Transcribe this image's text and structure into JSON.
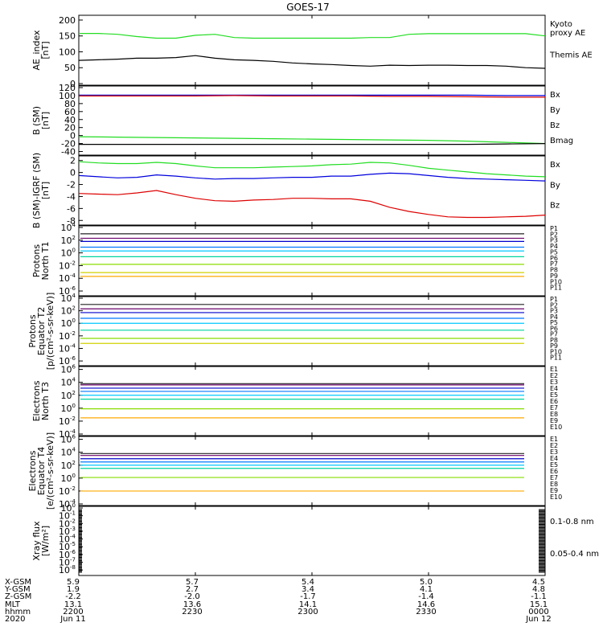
{
  "title": "GOES-17",
  "colors": {
    "green": "#22dd22",
    "black": "#000000",
    "blue": "#0000dd",
    "red": "#dd0000",
    "p1": "#222222",
    "p2": "#6a006a",
    "p3": "#0000cc",
    "p4": "#0077ff",
    "p5": "#00c8ff",
    "p6": "#00d4a0",
    "p7": "#88dd00",
    "p8": "#d0d000",
    "p9": "#ffaa00",
    "p10": "#dd5500",
    "p11": "#cc0000"
  },
  "chart_data": [
    {
      "type": "line",
      "panel": "ae",
      "ylabel": "AE_index\n[nT]",
      "yticks": [
        "200",
        "150",
        "100",
        "50",
        "0"
      ],
      "ylim": [
        0,
        210
      ],
      "x": [
        0,
        5,
        10,
        15,
        20,
        25,
        30,
        35,
        40,
        45,
        50,
        55,
        60,
        65,
        70,
        75,
        80,
        85,
        90,
        95,
        100,
        105,
        110,
        115,
        120
      ],
      "series": [
        {
          "name": "Kyoto\nproxy AE",
          "color": "green",
          "values": [
            158,
            158,
            155,
            148,
            143,
            143,
            152,
            155,
            145,
            143,
            143,
            143,
            143,
            143,
            143,
            145,
            145,
            155,
            157,
            157,
            157,
            157,
            157,
            157,
            150
          ]
        },
        {
          "name": "Themis AE",
          "color": "black",
          "values": [
            73,
            75,
            77,
            80,
            80,
            82,
            88,
            80,
            75,
            73,
            70,
            65,
            62,
            60,
            57,
            55,
            58,
            57,
            58,
            58,
            57,
            57,
            55,
            50,
            48
          ]
        }
      ]
    },
    {
      "type": "line",
      "panel": "bsm",
      "ylabel": "B (SM)\n[nT]",
      "yticks": [
        "120",
        "100",
        "80",
        "60",
        "40",
        "20",
        "0",
        "-20",
        "-40"
      ],
      "ylim": [
        -45,
        120
      ],
      "x": [
        0,
        10,
        20,
        30,
        40,
        50,
        60,
        70,
        80,
        90,
        100,
        110,
        120
      ],
      "series": [
        {
          "name": "Bx",
          "color": "blue",
          "values": [
            101,
            101,
            101,
            101,
            101,
            101,
            101,
            101,
            101,
            101,
            101,
            100,
            100
          ]
        },
        {
          "name": "By",
          "color": "green",
          "values": [
            -3,
            -4,
            -5,
            -6,
            -7,
            -8,
            -9,
            -10,
            -11,
            -12,
            -14,
            -17,
            -20
          ]
        },
        {
          "name": "Bz",
          "color": "red",
          "values": [
            99,
            99,
            99,
            99,
            100,
            99,
            99,
            99,
            98,
            98,
            97,
            96,
            96
          ]
        },
        {
          "name": "Bmag",
          "color": "black",
          "values": [
            -22,
            -22,
            -22,
            -22,
            -22,
            -22,
            -22,
            -22,
            -22,
            -22,
            -22,
            -21,
            -20
          ]
        }
      ]
    },
    {
      "type": "line",
      "panel": "bsmigrf",
      "ylabel": "B (SM)-IGRF (SM)\n[nT]",
      "yticks": [
        "2",
        "0",
        "-2",
        "-4",
        "-6",
        "-8"
      ],
      "ylim": [
        -8.5,
        2.5
      ],
      "x": [
        0,
        5,
        10,
        15,
        20,
        25,
        30,
        35,
        40,
        45,
        50,
        55,
        60,
        65,
        70,
        75,
        80,
        85,
        90,
        95,
        100,
        105,
        110,
        115,
        120
      ],
      "series": [
        {
          "name": "Bx",
          "color": "blue",
          "values": [
            -0.5,
            -0.7,
            -0.9,
            -0.8,
            -0.4,
            -0.6,
            -0.9,
            -1.1,
            -1.0,
            -1.0,
            -0.9,
            -0.8,
            -0.8,
            -0.6,
            -0.6,
            -0.3,
            -0.1,
            -0.2,
            -0.5,
            -0.8,
            -1.0,
            -1.1,
            -1.2,
            -1.3,
            -1.4
          ]
        },
        {
          "name": "By",
          "color": "green",
          "values": [
            1.8,
            1.6,
            1.5,
            1.5,
            1.7,
            1.5,
            1.1,
            0.8,
            0.8,
            0.8,
            0.9,
            1.0,
            1.1,
            1.3,
            1.4,
            1.7,
            1.6,
            1.2,
            0.7,
            0.4,
            0.1,
            -0.2,
            -0.4,
            -0.6,
            -0.7
          ]
        },
        {
          "name": "Bz",
          "color": "red",
          "values": [
            -3.5,
            -3.6,
            -3.7,
            -3.4,
            -3.0,
            -3.7,
            -4.3,
            -4.7,
            -4.8,
            -4.6,
            -4.5,
            -4.3,
            -4.3,
            -4.4,
            -4.4,
            -4.8,
            -5.8,
            -6.5,
            -7.0,
            -7.4,
            -7.5,
            -7.5,
            -7.4,
            -7.3,
            -7.1
          ]
        }
      ]
    },
    {
      "type": "line",
      "panel": "protons_t1",
      "ylabel": "Protons\nNorth T1",
      "yexp": [
        "4",
        "2",
        "0",
        "-2",
        "-4",
        "-6"
      ],
      "ylim_exp": [
        -6.5,
        4.0
      ],
      "channels": [
        "P1",
        "P2",
        "P3",
        "P4",
        "P5",
        "P6",
        "P7",
        "P8",
        "P9",
        "P10",
        "P11"
      ],
      "levels_exp": [
        3.0,
        2.3,
        1.8,
        0.9,
        0.3,
        -0.6,
        -1.8,
        -3.1,
        -3.7,
        null,
        null
      ]
    },
    {
      "type": "line",
      "panel": "protons_t2",
      "ylabel": "Protons\nEquator T2\n[p/(cm²-s-sr-keV)]",
      "yexp": [
        "4",
        "2",
        "0",
        "-2",
        "-4",
        "-6"
      ],
      "ylim_exp": [
        -6.5,
        4.0
      ],
      "channels": [
        "P1",
        "P2",
        "P3",
        "P4",
        "P5",
        "P6",
        "P7",
        "P8",
        "P9",
        "P10",
        "P11"
      ],
      "levels_exp": [
        3.0,
        2.3,
        1.7,
        0.8,
        0.0,
        -1.1,
        -2.4,
        -3.2,
        null,
        null,
        null
      ]
    },
    {
      "type": "line",
      "panel": "electrons_t3",
      "ylabel": "Electrons\nNorth T3",
      "yexp": [
        "6",
        "4",
        "2",
        "0",
        "-2",
        "-4"
      ],
      "ylim_exp": [
        -4.0,
        6.2
      ],
      "channels": [
        "E1",
        "E2",
        "E3",
        "E4",
        "E5",
        "E6",
        "E7",
        "E8",
        "E9",
        "E10"
      ],
      "levels_exp": [
        3.8,
        3.6,
        3.1,
        2.6,
        2.0,
        1.4,
        -0.1,
        null,
        -1.5,
        null
      ]
    },
    {
      "type": "line",
      "panel": "electrons_t4",
      "ylabel": "Electrons\nEquator T4\n[e/(cm²-s-sr-keV)]",
      "yexp": [
        "6",
        "4",
        "2",
        "0",
        "-2",
        "-4"
      ],
      "ylim_exp": [
        -4.0,
        6.2
      ],
      "channels": [
        "E1",
        "E2",
        "E3",
        "E4",
        "E5",
        "E6",
        "E7",
        "E8",
        "E9",
        "E10"
      ],
      "levels_exp": [
        3.8,
        3.5,
        3.0,
        2.5,
        2.0,
        1.5,
        0.1,
        null,
        -2.0,
        null
      ]
    },
    {
      "type": "line",
      "panel": "xray",
      "ylabel": "Xray flux\n[W/m²]",
      "yexp": [
        "0",
        "-1",
        "-2",
        "-3",
        "-4",
        "-5",
        "-6",
        "-7",
        "-8"
      ],
      "ylim_exp": [
        -8.5,
        0.0
      ],
      "series": [
        {
          "name": "0.1-0.8 nm",
          "color": "red",
          "values": []
        },
        {
          "name": "0.05-0.4 nm",
          "color": "blue",
          "values": []
        }
      ]
    }
  ],
  "footer": {
    "rows": [
      "X-GSM",
      "Y-GSM",
      "Z-GSM",
      "MLT",
      "hhmm",
      "2020"
    ],
    "columns": [
      [
        "5.9",
        "1.9",
        "-2.2",
        "13.1",
        "2200",
        "Jun 11"
      ],
      [
        "5.7",
        "2.7",
        "-2.0",
        "13.6",
        "2230",
        ""
      ],
      [
        "5.4",
        "3.4",
        "-1.7",
        "14.1",
        "2300",
        ""
      ],
      [
        "5.0",
        "4.1",
        "-1.4",
        "14.6",
        "2330",
        ""
      ],
      [
        "4.5",
        "4.8",
        "-1.1",
        "15.1",
        "0000",
        "Jun 12"
      ]
    ]
  }
}
